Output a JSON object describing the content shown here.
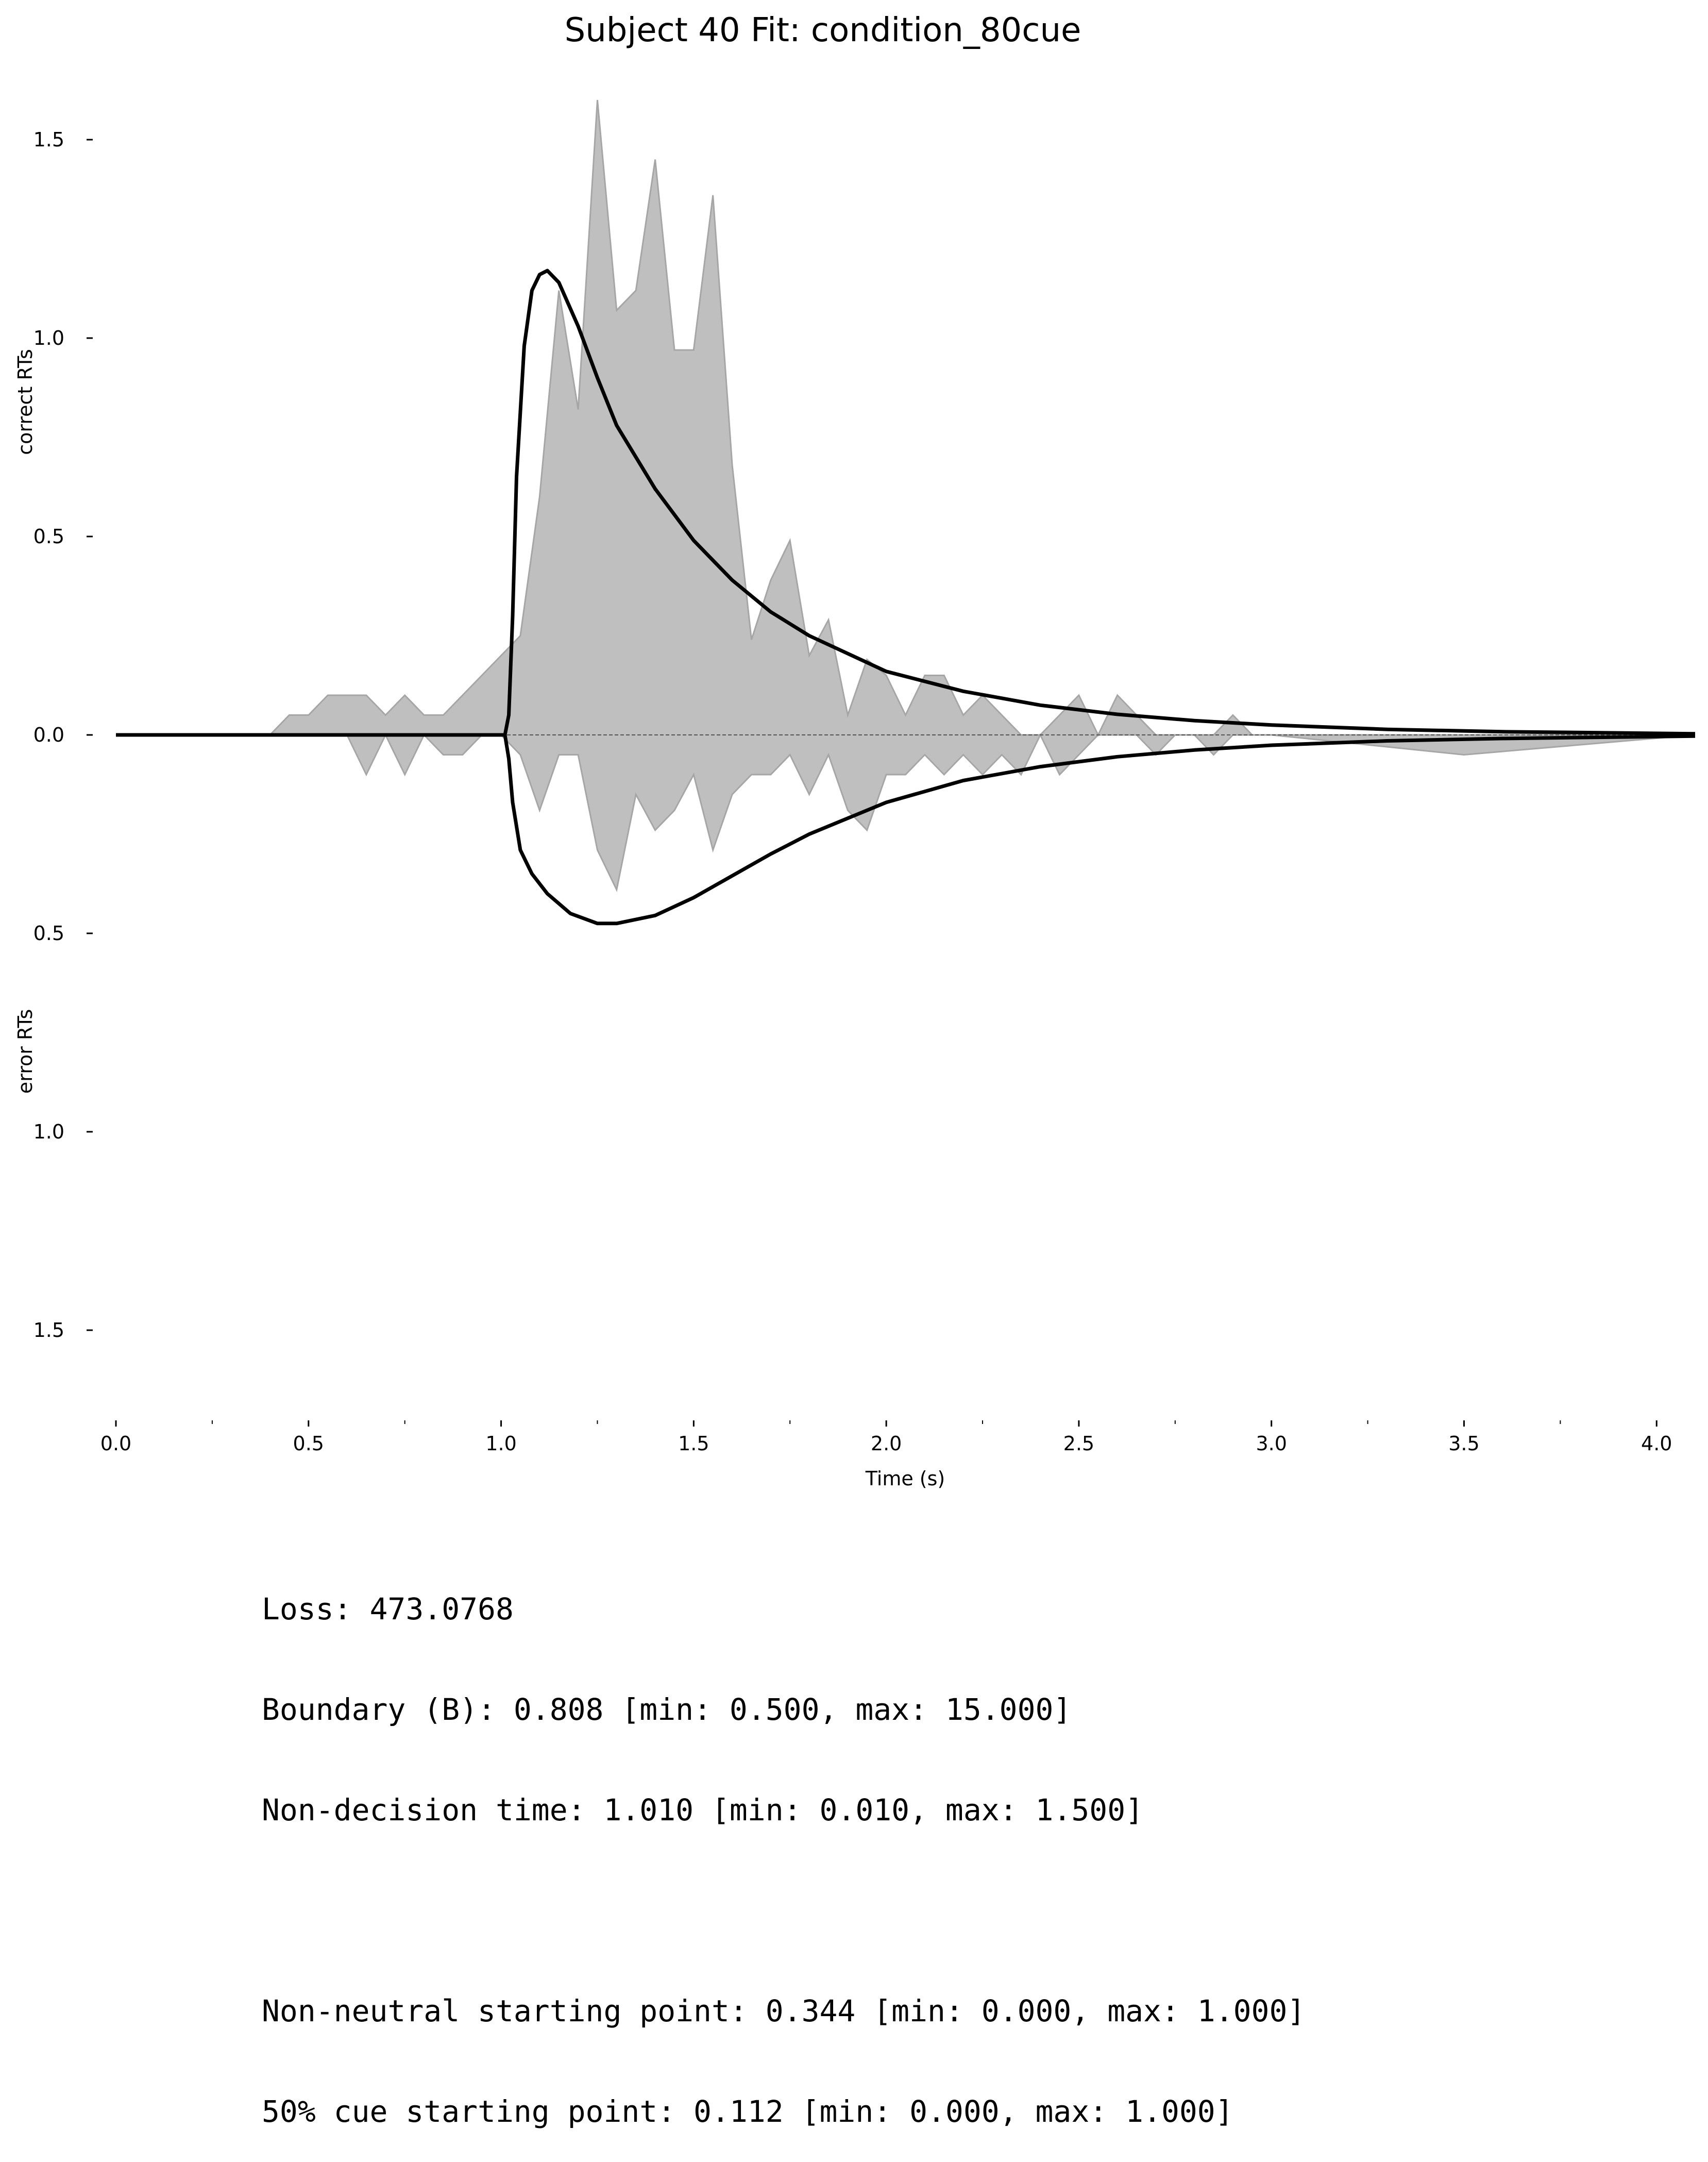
{
  "chart_data": {
    "type": "area",
    "title": "Subject 40 Fit: condition_80cue",
    "xlabel": "Time (s)",
    "ylabel_top": "correct RTs",
    "ylabel_bottom": "error RTs",
    "xlim": [
      0.0,
      4.1
    ],
    "ylim": [
      -1.7,
      1.7
    ],
    "x_ticks": [
      "0.0",
      "0.5",
      "1.0",
      "1.5",
      "2.0",
      "2.5",
      "3.0",
      "3.5",
      "4.0"
    ],
    "y_ticks": [
      "1.5",
      "1.0",
      "0.5",
      "0.0",
      "0.5",
      "1.0",
      "1.5"
    ],
    "grid": false,
    "series": [
      {
        "kind": "histogram-area",
        "color": "#bfbfbf",
        "x": [
          0.0,
          0.4,
          0.45,
          0.5,
          0.55,
          0.6,
          0.65,
          0.7,
          0.75,
          0.8,
          0.85,
          0.9,
          0.95,
          1.0,
          1.05,
          1.1,
          1.15,
          1.2,
          1.25,
          1.3,
          1.35,
          1.4,
          1.45,
          1.5,
          1.55,
          1.6,
          1.65,
          1.7,
          1.75,
          1.8,
          1.85,
          1.9,
          1.95,
          2.0,
          2.05,
          2.1,
          2.15,
          2.2,
          2.25,
          2.3,
          2.35,
          2.4,
          2.45,
          2.5,
          2.55,
          2.6,
          2.65,
          2.7,
          2.75,
          2.8,
          2.85,
          2.9,
          2.95,
          3.0,
          3.5,
          4.1
        ],
        "upper": [
          0,
          0,
          0.05,
          0.05,
          0.1,
          0.1,
          0.1,
          0.05,
          0.1,
          0.05,
          0.05,
          0.1,
          0.15,
          0.2,
          0.25,
          0.6,
          1.12,
          0.82,
          1.6,
          1.07,
          1.12,
          1.45,
          0.97,
          0.97,
          1.36,
          0.68,
          0.24,
          0.39,
          0.49,
          0.2,
          0.29,
          0.05,
          0.19,
          0.15,
          0.05,
          0.15,
          0.15,
          0.05,
          0.1,
          0.05,
          0.0,
          0.0,
          0.05,
          0.1,
          0.0,
          0.1,
          0.05,
          0.0,
          0.0,
          0.0,
          0.0,
          0.05,
          0.0,
          0.0,
          0.0,
          0
        ],
        "lower": [
          0,
          0,
          0,
          0,
          0,
          0,
          -0.1,
          0,
          -0.1,
          0,
          -0.05,
          -0.05,
          0,
          0,
          -0.05,
          -0.19,
          -0.05,
          -0.05,
          -0.29,
          -0.39,
          -0.15,
          -0.24,
          -0.19,
          -0.1,
          -0.29,
          -0.15,
          -0.1,
          -0.1,
          -0.05,
          -0.15,
          -0.05,
          -0.19,
          -0.24,
          -0.1,
          -0.1,
          -0.05,
          -0.1,
          -0.05,
          -0.1,
          -0.05,
          -0.1,
          0,
          -0.1,
          -0.05,
          0,
          0,
          0,
          -0.05,
          0,
          0,
          -0.05,
          0,
          0,
          0,
          -0.05,
          0
        ]
      },
      {
        "kind": "fitted-density-correct",
        "color": "#000000",
        "x": [
          0.0,
          1.01,
          1.02,
          1.03,
          1.04,
          1.06,
          1.08,
          1.1,
          1.12,
          1.15,
          1.2,
          1.25,
          1.3,
          1.4,
          1.5,
          1.6,
          1.7,
          1.8,
          2.0,
          2.2,
          2.4,
          2.6,
          2.8,
          3.0,
          3.3,
          3.6,
          4.1
        ],
        "y": [
          0,
          0,
          0.05,
          0.3,
          0.65,
          0.98,
          1.12,
          1.16,
          1.17,
          1.14,
          1.03,
          0.9,
          0.78,
          0.62,
          0.49,
          0.39,
          0.31,
          0.25,
          0.16,
          0.11,
          0.075,
          0.052,
          0.036,
          0.025,
          0.014,
          0.008,
          0.003
        ]
      },
      {
        "kind": "fitted-density-error",
        "color": "#000000",
        "x": [
          0.0,
          1.01,
          1.02,
          1.03,
          1.05,
          1.08,
          1.12,
          1.18,
          1.25,
          1.3,
          1.4,
          1.5,
          1.6,
          1.7,
          1.8,
          2.0,
          2.2,
          2.4,
          2.6,
          2.8,
          3.0,
          3.3,
          3.6,
          4.1
        ],
        "y": [
          0,
          0,
          -0.06,
          -0.17,
          -0.29,
          -0.35,
          -0.4,
          -0.45,
          -0.475,
          -0.475,
          -0.455,
          -0.41,
          -0.355,
          -0.3,
          -0.25,
          -0.17,
          -0.115,
          -0.08,
          -0.055,
          -0.038,
          -0.026,
          -0.015,
          -0.009,
          -0.003
        ]
      }
    ]
  },
  "stats": {
    "loss": "Loss: 473.0768",
    "boundary": "Boundary (B): 0.808 [min: 0.500, max: 15.000]",
    "nondecision": "Non-decision time: 1.010 [min: 0.010, max: 1.500]",
    "blank": "",
    "nonneutral_start": "Non-neutral starting point: 0.344 [min: 0.000, max: 1.000]",
    "cue50_start": "50% cue starting point: 0.112 [min: 0.000, max: 1.000]"
  }
}
